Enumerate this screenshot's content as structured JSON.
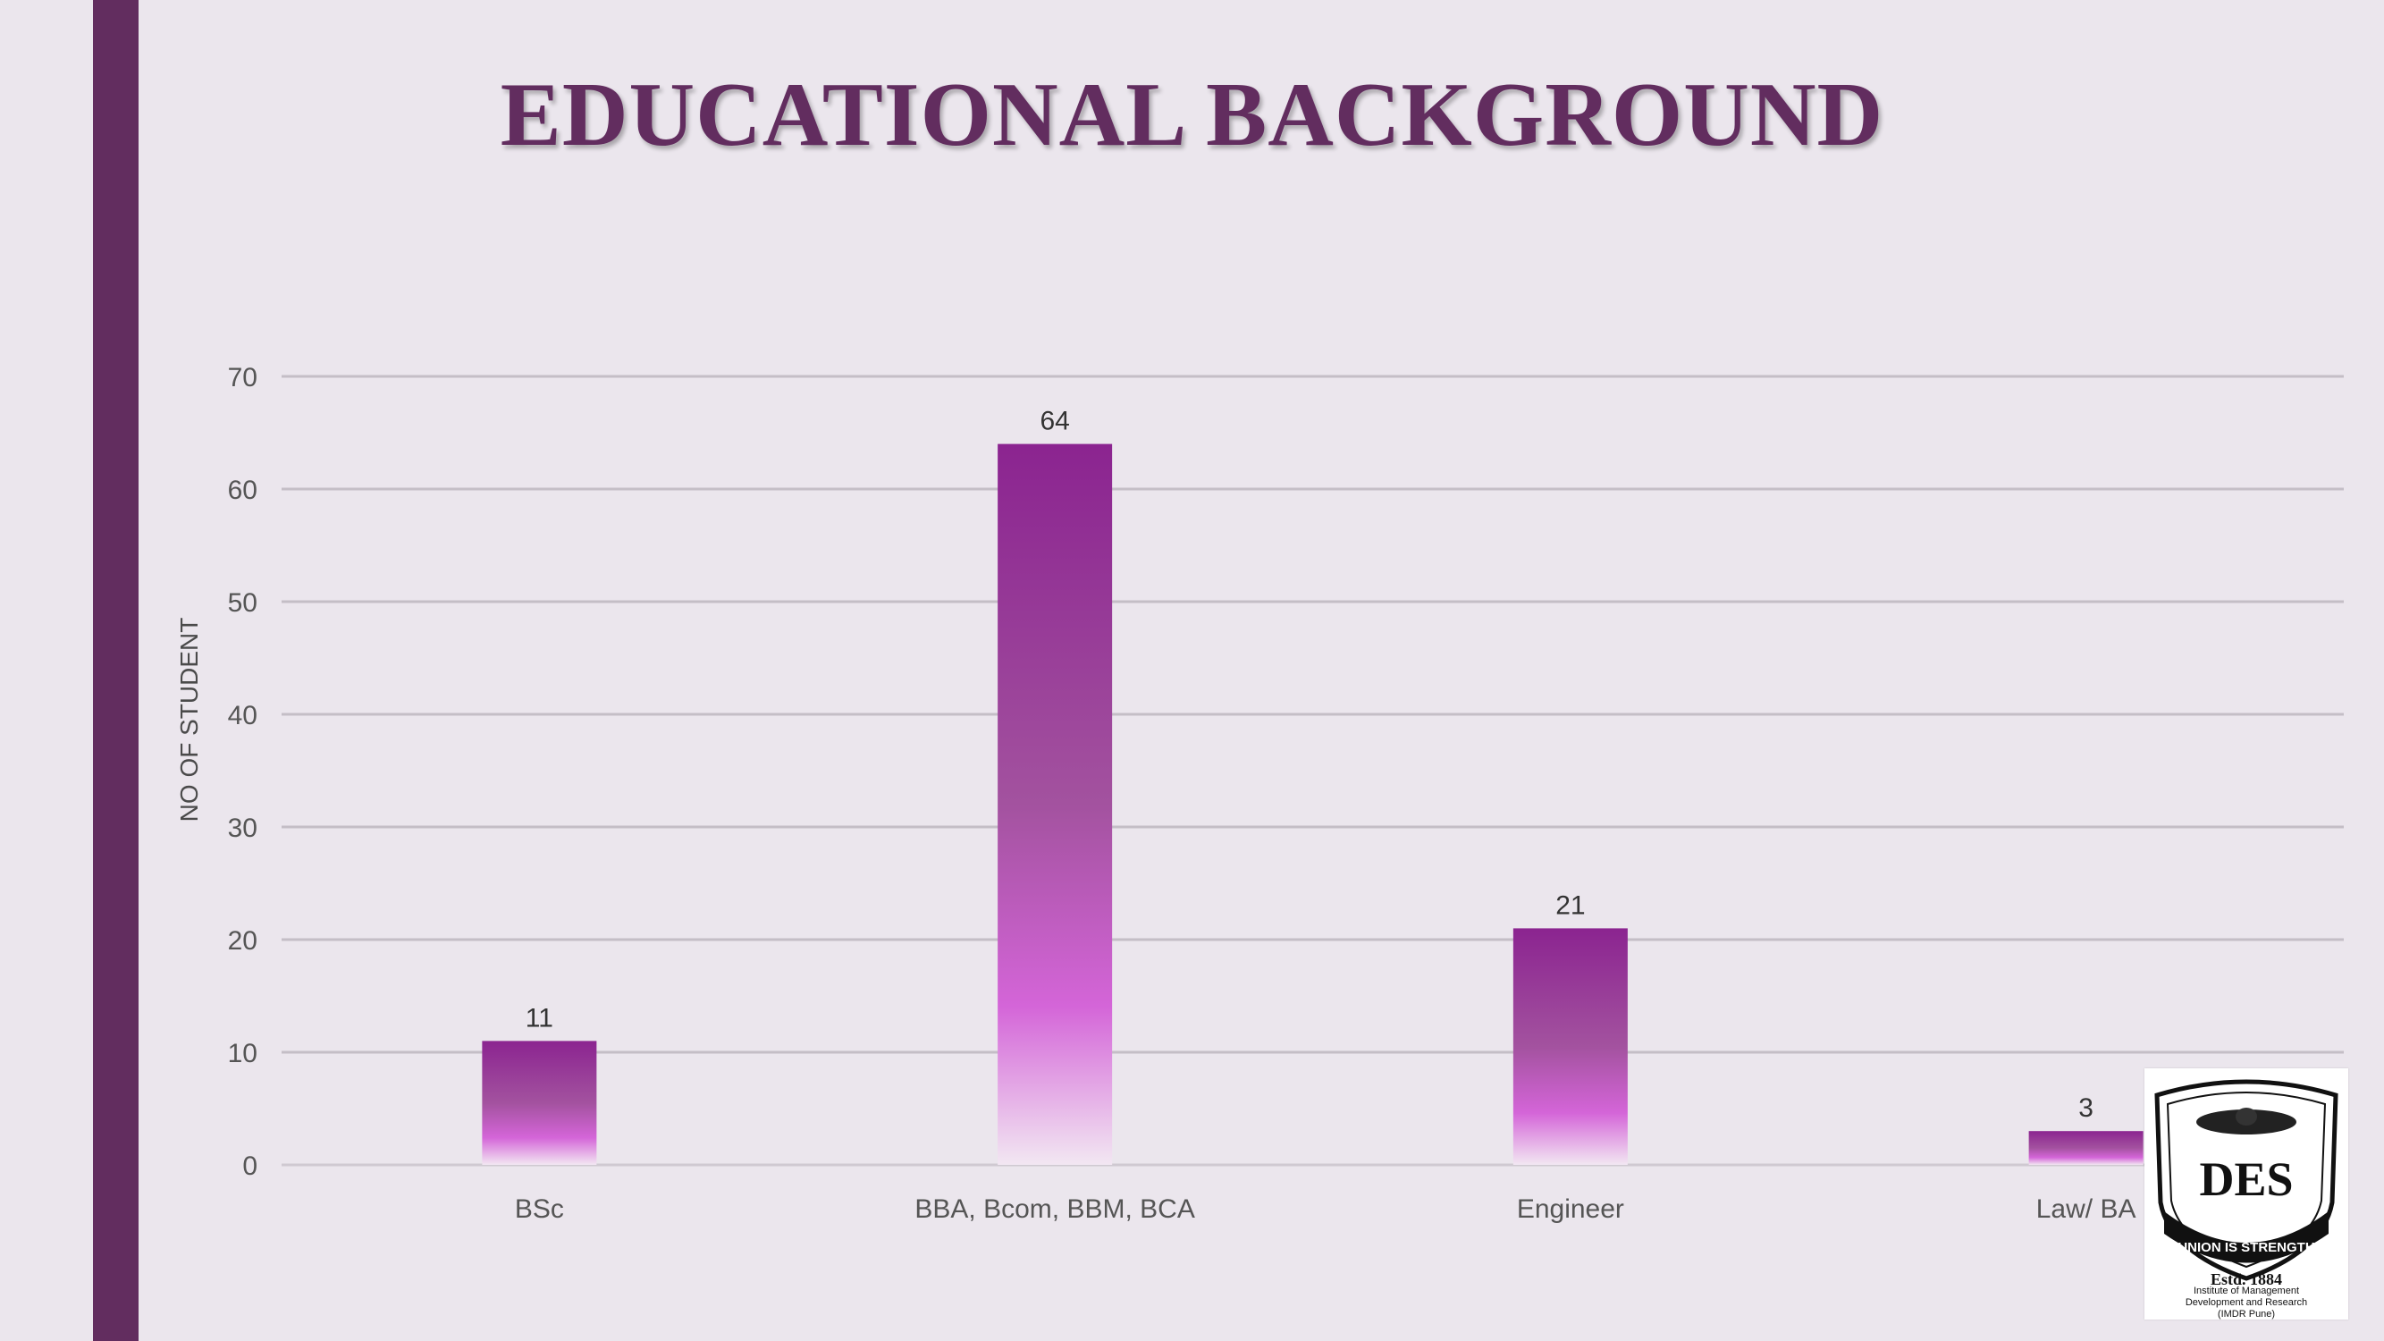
{
  "slide": {
    "title": "EDUCATIONAL BACKGROUND"
  },
  "logo": {
    "motto": "UNION IS STRENGTH",
    "monogram": "DES",
    "established": "Estd. 1884",
    "institute_lines": [
      "Institute of Management",
      "Development and Research",
      "(IMDR Pune)"
    ]
  },
  "colors": {
    "accent": "#622d5f",
    "bar_top": "#8b2490",
    "bar_mid": "#d465d8",
    "background": "#ebe6ed"
  },
  "chart_data": {
    "type": "bar",
    "title": "",
    "xlabel": "",
    "ylabel": "NO OF STUDENT",
    "categories": [
      "BSc",
      "BBA, Bcom, BBM, BCA",
      "Engineer",
      "Law/ BA"
    ],
    "values": [
      11,
      64,
      21,
      3
    ],
    "ylim": [
      0,
      70
    ],
    "yticks": [
      0,
      10,
      20,
      30,
      40,
      50,
      60,
      70
    ],
    "grid": true,
    "data_labels": true,
    "legend": "none"
  }
}
